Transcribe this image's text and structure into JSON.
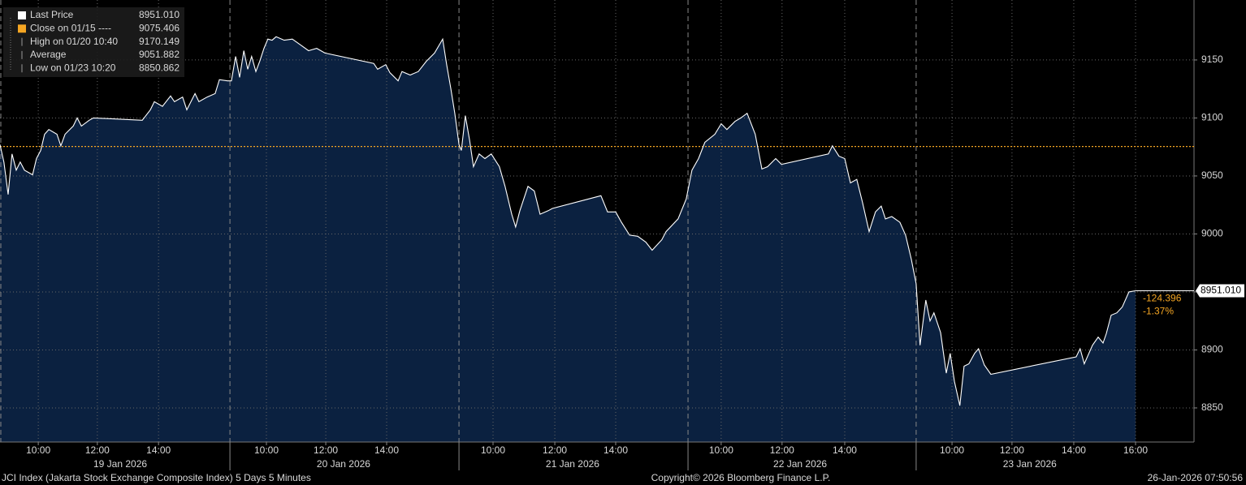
{
  "chart_data": {
    "type": "area",
    "x": [
      0,
      0.13,
      0.27,
      0.4,
      0.54,
      0.67,
      0.81,
      1.08,
      1.21,
      1.35,
      1.48,
      1.62,
      1.89,
      2.02,
      2.16,
      2.43,
      2.56,
      2.7,
      2.96,
      3.1,
      4.72,
      4.99,
      5.12,
      5.39,
      5.66,
      5.79,
      6.06,
      6.2,
      6.47,
      6.6,
      6.87,
      7.14,
      7.28,
      7.55,
      7.68,
      7.82,
      7.95,
      8.09,
      8.22,
      8.35,
      8.49,
      8.62,
      8.76,
      8.89,
      9.03,
      9.16,
      9.43,
      9.7,
      9.97,
      10.24,
      10.51,
      10.78,
      12.4,
      12.53,
      12.8,
      12.94,
      13.21,
      13.34,
      13.61,
      13.88,
      14.15,
      14.42,
      14.69,
      14.82,
      14.96,
      15.09,
      15.23,
      15.31,
      15.44,
      15.58,
      15.71,
      15.9,
      16.09,
      16.3,
      16.57,
      16.76,
      16.98,
      17.11,
      17.25,
      17.52,
      17.73,
      17.92,
      18.19,
      18.33,
      19.94,
      20.16,
      20.43,
      20.62,
      20.89,
      21.16,
      21.43,
      21.64,
      21.96,
      22.1,
      22.5,
      22.77,
      22.96,
      23.18,
      23.39,
      23.72,
      23.93,
      24.12,
      24.39,
      24.58,
      24.79,
      25.06,
      25.28,
      25.47,
      25.74,
      25.93,
      27.49,
      27.62,
      27.84,
      28.03,
      28.22,
      28.43,
      28.62,
      28.84,
      29.05,
      29.24,
      29.38,
      29.59,
      29.86,
      30.05,
      30.24,
      30.4,
      30.53,
      30.72,
      30.86,
      30.99,
      31.21,
      31.4,
      31.53,
      31.67,
      31.85,
      31.99,
      32.15,
      32.34,
      32.47,
      32.66,
      32.88,
      35.71,
      35.84,
      35.98,
      36.25,
      36.44,
      36.6,
      36.71,
      36.87,
      37.06,
      37.24,
      37.46,
      37.68
    ],
    "series": [
      {
        "name": "Last Price",
        "color": "#ffffff",
        "fill": "#0b2140",
        "values": [
          9077,
          9062,
          9034,
          9069,
          9055,
          9062,
          9055,
          9051,
          9065,
          9072,
          9086,
          9090,
          9086,
          9076,
          9086,
          9093,
          9100,
          9093,
          9098,
          9100,
          9098,
          9107,
          9114,
          9110,
          9119,
          9114,
          9118,
          9107,
          9121,
          9114,
          9118,
          9121,
          9133,
          9132,
          9132,
          9153,
          9135,
          9158,
          9142,
          9153,
          9140,
          9149,
          9160,
          9168,
          9167,
          9170,
          9167,
          9168,
          9163,
          9158,
          9160,
          9156,
          9147,
          9142,
          9146,
          9139,
          9132,
          9140,
          9137,
          9140,
          9149,
          9156,
          9168,
          9146,
          9125,
          9104,
          9077,
          9072,
          9102,
          9081,
          9058,
          9069,
          9065,
          9069,
          9058,
          9041,
          9017,
          9006,
          9020,
          9041,
          9037,
          9017,
          9020,
          9022,
          9033,
          9019,
          9019,
          9010,
          8999,
          8998,
          8993,
          8986,
          8995,
          9002,
          9013,
          9030,
          9055,
          9065,
          9079,
          9086,
          9095,
          9090,
          9097,
          9100,
          9104,
          9086,
          9056,
          9058,
          9065,
          9060,
          9069,
          9076,
          9067,
          9065,
          9044,
          9047,
          9027,
          9002,
          9019,
          9024,
          9013,
          9015,
          9010,
          8999,
          8978,
          8957,
          8904,
          8943,
          8925,
          8932,
          8915,
          8880,
          8897,
          8873,
          8852,
          8886,
          8888,
          8897,
          8901,
          8887,
          8879,
          8894,
          8901,
          8888,
          8904,
          8911,
          8906,
          8914,
          8930,
          8932,
          8937,
          8950,
          8951
        ]
      }
    ],
    "xlim": [
      0,
      39.62
    ],
    "ylim": [
      8820.6,
      9201.7
    ],
    "yticks": [
      8850,
      8900,
      8950,
      9000,
      9050,
      9100,
      9150
    ],
    "xticks": [
      {
        "value": 1.27,
        "label": "10:00"
      },
      {
        "value": 3.23,
        "label": "12:00"
      },
      {
        "value": 5.26,
        "label": "14:00"
      },
      {
        "value": 8.84,
        "label": "10:00"
      },
      {
        "value": 10.81,
        "label": "12:00"
      },
      {
        "value": 12.83,
        "label": "14:00"
      },
      {
        "value": 16.36,
        "label": "10:00"
      },
      {
        "value": 18.41,
        "label": "12:00"
      },
      {
        "value": 20.43,
        "label": "14:00"
      },
      {
        "value": 23.93,
        "label": "10:00"
      },
      {
        "value": 25.95,
        "label": "12:00"
      },
      {
        "value": 28.03,
        "label": "14:00"
      },
      {
        "value": 31.59,
        "label": "10:00"
      },
      {
        "value": 33.58,
        "label": "12:00"
      },
      {
        "value": 35.63,
        "label": "14:00"
      },
      {
        "value": 37.68,
        "label": "16:00"
      }
    ],
    "date_labels": [
      {
        "value": 3.99,
        "label": "19 Jan 2026"
      },
      {
        "value": 11.4,
        "label": "20 Jan 2026"
      },
      {
        "value": 19.0,
        "label": "21 Jan 2026"
      },
      {
        "value": 26.55,
        "label": "22 Jan 2026"
      },
      {
        "value": 34.17,
        "label": "23 Jan 2026"
      }
    ],
    "day_breaks": [
      7.63,
      15.23,
      22.83,
      30.4
    ],
    "grid": true,
    "reference_line": {
      "value": 9075.406,
      "color": "#f5a623"
    },
    "legend": [
      {
        "name": "Last Price",
        "value": 8951.01,
        "label": "8951.010",
        "color": "#ffffff"
      },
      {
        "name": "Close on 01/15 ----",
        "value": 9075.406,
        "label": "9075.406",
        "color": "#f5a623"
      },
      {
        "name": "High on 01/20 10:40",
        "value": 9170.149,
        "label": "9170.149"
      },
      {
        "name": "Average",
        "value": 9051.882,
        "label": "9051.882"
      },
      {
        "name": "Low on 01/23 10:20",
        "value": 8850.862,
        "label": "8850.862"
      }
    ],
    "change": {
      "value": -124.396,
      "label": "-124.396"
    },
    "change_pct": {
      "value": -1.37,
      "label": "-1.37%"
    },
    "footer": {
      "left": "JCI Index (Jakarta Stock Exchange Composite Index) 5 Days 5 Minutes",
      "center": "Copyright© 2026 Bloomberg Finance L.P.",
      "right": "26-Jan-2026 07:50:56"
    }
  }
}
